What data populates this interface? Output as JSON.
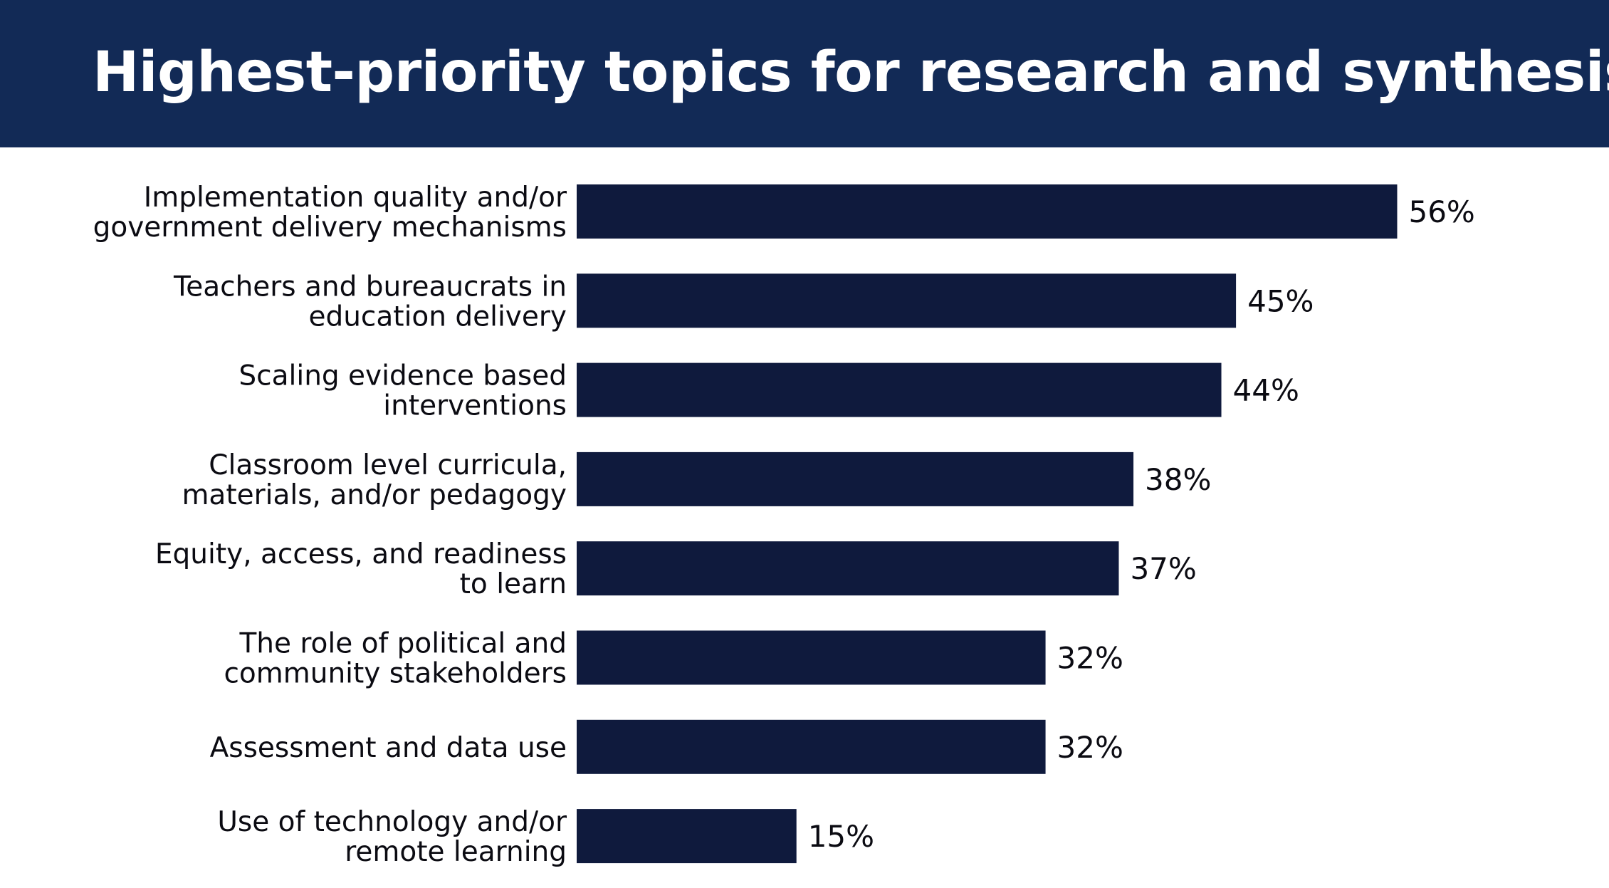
{
  "header": {
    "background": "#122a56"
  },
  "chart_data": {
    "type": "bar",
    "orientation": "horizontal",
    "title": "Highest-priority topics for research and synthesis",
    "categories": [
      [
        "Implementation quality and/or",
        "government delivery mechanisms"
      ],
      [
        "Teachers and bureaucrats in",
        "education delivery"
      ],
      [
        "Scaling evidence based",
        "interventions"
      ],
      [
        "Classroom level curricula,",
        "materials, and/or pedagogy"
      ],
      [
        "Equity, access, and readiness",
        "to learn"
      ],
      [
        "The role of political and",
        "community stakeholders"
      ],
      [
        "Assessment and data use"
      ],
      [
        "Use of technology and/or",
        "remote learning"
      ]
    ],
    "values": [
      56,
      45,
      44,
      38,
      37,
      32,
      32,
      15
    ],
    "data_labels": [
      "56%",
      "45%",
      "44%",
      "38%",
      "37%",
      "32%",
      "32%",
      "15%"
    ],
    "unit": "%",
    "xlim": [
      0,
      100
    ],
    "grid": false,
    "legend": "none",
    "bar_color": "#0f1a3d",
    "text_color": "#0b0b12"
  }
}
